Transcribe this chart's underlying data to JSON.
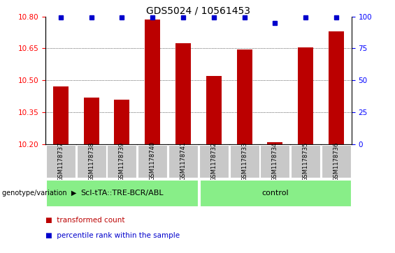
{
  "title": "GDS5024 / 10561453",
  "samples": [
    "GSM1178737",
    "GSM1178738",
    "GSM1178739",
    "GSM1178740",
    "GSM1178741",
    "GSM1178732",
    "GSM1178733",
    "GSM1178734",
    "GSM1178735",
    "GSM1178736"
  ],
  "transformed_count": [
    10.47,
    10.42,
    10.41,
    10.785,
    10.675,
    10.52,
    10.645,
    10.21,
    10.655,
    10.73
  ],
  "percentile_rank": [
    99,
    99,
    99,
    99,
    99,
    99,
    99,
    95,
    99,
    99
  ],
  "ylim_left": [
    10.2,
    10.8
  ],
  "yticks_left": [
    10.2,
    10.35,
    10.5,
    10.65,
    10.8
  ],
  "yticks_right": [
    0,
    25,
    50,
    75,
    100
  ],
  "ylim_right": [
    0,
    100
  ],
  "group1_label": "ScI-tTA::TRE-BCR/ABL",
  "group2_label": "control",
  "group1_count": 5,
  "group2_count": 5,
  "bar_color": "#BB0000",
  "dot_color": "#0000CC",
  "genotype_label": "genotype/variation",
  "legend_bar_label": "transformed count",
  "legend_dot_label": "percentile rank within the sample",
  "group_bg_color": "#88EE88",
  "sample_bg_color": "#C8C8C8",
  "bar_width": 0.5,
  "title_fontsize": 10,
  "tick_fontsize": 7.5,
  "sample_fontsize": 6,
  "label_fontsize": 8,
  "legend_fontsize": 7.5
}
